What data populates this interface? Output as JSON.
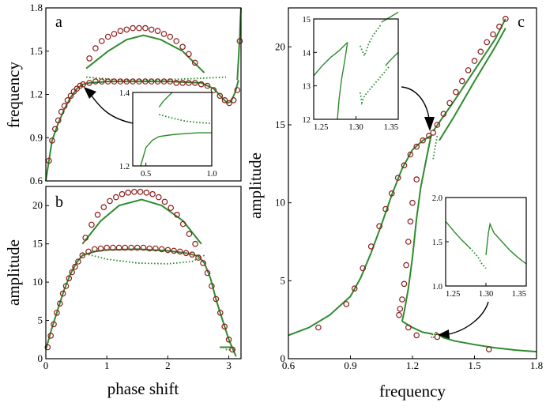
{
  "colors": {
    "curve": "#2e8b2e",
    "marker": "#8b1a1a",
    "axis": "#000000"
  },
  "chart_data": [
    {
      "panel": "a",
      "type": "line",
      "xlabel": "",
      "ylabel": "frequency",
      "xlim": [
        0,
        3.14
      ],
      "ylim": [
        0.6,
        1.8
      ],
      "yticks": [
        "0.6",
        "0.9",
        "1.2",
        "1.5",
        "1.8"
      ],
      "grid": false,
      "series": [
        {
          "style": "solid",
          "x": [
            0,
            0.05,
            0.1,
            0.2,
            0.3,
            0.4,
            0.5,
            0.6,
            0.7,
            1.0,
            1.5,
            2.0,
            2.5,
            2.7,
            2.85,
            2.92,
            2.98,
            3.05,
            3.1
          ],
          "y": [
            0.6,
            0.74,
            0.88,
            1.0,
            1.1,
            1.18,
            1.24,
            1.27,
            1.28,
            1.29,
            1.29,
            1.29,
            1.28,
            1.24,
            1.17,
            1.14,
            1.15,
            1.22,
            1.3
          ]
        },
        {
          "style": "solid",
          "x": [
            0.65,
            1.0,
            1.3,
            1.57,
            1.85,
            2.2,
            2.55
          ],
          "y": [
            1.38,
            1.5,
            1.58,
            1.61,
            1.58,
            1.5,
            1.35
          ]
        },
        {
          "style": "dotted",
          "x": [
            0.65,
            1.2,
            1.8,
            2.4,
            2.9
          ],
          "y": [
            1.32,
            1.3,
            1.3,
            1.31,
            1.32
          ]
        },
        {
          "style": "solid",
          "x": [
            3.08,
            3.1,
            3.12,
            3.13,
            3.14
          ],
          "y": [
            1.3,
            1.45,
            1.6,
            1.72,
            1.8
          ]
        }
      ],
      "markers": {
        "x": [
          0.05,
          0.1,
          0.15,
          0.2,
          0.25,
          0.3,
          0.35,
          0.4,
          0.45,
          0.5,
          0.55,
          0.6,
          0.7,
          0.8,
          0.9,
          1.0,
          1.1,
          1.2,
          1.3,
          1.4,
          1.5,
          1.6,
          1.7,
          1.8,
          1.9,
          2.0,
          2.1,
          2.2,
          2.3,
          2.4,
          2.5,
          2.6,
          2.7,
          2.8,
          2.88,
          2.95,
          3.02,
          3.08,
          0.7,
          0.8,
          0.9,
          1.0,
          1.1,
          1.2,
          1.3,
          1.4,
          1.5,
          1.6,
          1.7,
          1.8,
          1.9,
          2.0,
          2.1,
          2.2,
          2.3,
          2.4,
          3.12
        ],
        "y": [
          0.74,
          0.88,
          0.96,
          1.02,
          1.08,
          1.12,
          1.16,
          1.19,
          1.22,
          1.24,
          1.26,
          1.27,
          1.28,
          1.29,
          1.29,
          1.29,
          1.29,
          1.29,
          1.29,
          1.29,
          1.29,
          1.29,
          1.29,
          1.29,
          1.29,
          1.29,
          1.28,
          1.28,
          1.28,
          1.28,
          1.27,
          1.26,
          1.23,
          1.19,
          1.16,
          1.14,
          1.16,
          1.23,
          1.45,
          1.52,
          1.57,
          1.6,
          1.62,
          1.64,
          1.65,
          1.66,
          1.66,
          1.66,
          1.65,
          1.64,
          1.62,
          1.6,
          1.57,
          1.53,
          1.48,
          1.42,
          1.57
        ]
      },
      "inset": {
        "xlim": [
          0.4,
          1.0
        ],
        "ylim": [
          1.2,
          1.4
        ],
        "xticks": [
          "0.5",
          "1.0"
        ],
        "yticks": [
          "1.2",
          "1.4"
        ],
        "series": [
          {
            "style": "solid",
            "x": [
              0.46,
              0.5,
              0.55,
              0.6,
              0.7,
              0.8,
              0.9,
              1.0
            ],
            "y": [
              1.2,
              1.25,
              1.27,
              1.28,
              1.285,
              1.288,
              1.29,
              1.29
            ]
          },
          {
            "style": "solid",
            "x": [
              0.6,
              0.63,
              0.67,
              0.7
            ],
            "y": [
              1.36,
              1.375,
              1.39,
              1.4
            ]
          },
          {
            "style": "dotted",
            "x": [
              0.6,
              0.7,
              0.8,
              0.9,
              1.0
            ],
            "y": [
              1.34,
              1.33,
              1.322,
              1.318,
              1.316
            ]
          }
        ]
      }
    },
    {
      "panel": "b",
      "type": "line",
      "xlabel": "phase shift",
      "ylabel": "amplitude",
      "xlim": [
        0,
        3.2
      ],
      "ylim": [
        0,
        22.5
      ],
      "xticks": [
        "0",
        "1",
        "2",
        "3"
      ],
      "yticks": [
        "0",
        "5",
        "10",
        "15",
        "20"
      ],
      "grid": false,
      "series": [
        {
          "style": "solid",
          "x": [
            0,
            0.1,
            0.2,
            0.3,
            0.4,
            0.5,
            0.6,
            0.8,
            1.0,
            1.5,
            2.0,
            2.3,
            2.5,
            2.6,
            2.7,
            2.8,
            2.9,
            3.0,
            3.08,
            3.12
          ],
          "y": [
            1.2,
            4.0,
            6.5,
            9.0,
            11.0,
            12.5,
            13.5,
            14.0,
            14.2,
            14.3,
            14.1,
            13.8,
            13.4,
            12.5,
            10.5,
            7.5,
            5.0,
            2.5,
            1.0,
            0.3
          ]
        },
        {
          "style": "solid",
          "x": [
            0.6,
            0.9,
            1.2,
            1.57,
            1.9,
            2.25,
            2.55
          ],
          "y": [
            15.0,
            18.0,
            20.0,
            20.8,
            20.0,
            18.0,
            15.0
          ]
        },
        {
          "style": "dotted",
          "x": [
            0.6,
            1.0,
            1.5,
            2.0,
            2.4,
            2.6
          ],
          "y": [
            13.8,
            13.0,
            12.5,
            12.4,
            12.7,
            13.5
          ]
        },
        {
          "style": "solid",
          "x": [
            2.85,
            2.95,
            3.05,
            3.1
          ],
          "y": [
            1.5,
            1.5,
            1.5,
            1.0
          ]
        },
        {
          "style": "dotted",
          "x": [
            2.95,
            3.0,
            3.05
          ],
          "y": [
            1.2,
            1.15,
            1.2
          ]
        }
      ],
      "markers": {
        "x": [
          0.03,
          0.08,
          0.13,
          0.18,
          0.23,
          0.28,
          0.33,
          0.38,
          0.43,
          0.48,
          0.53,
          0.6,
          0.7,
          0.8,
          0.9,
          1.0,
          1.1,
          1.2,
          1.3,
          1.4,
          1.5,
          1.6,
          1.7,
          1.8,
          1.9,
          2.0,
          2.1,
          2.2,
          2.3,
          2.4,
          2.5,
          2.58,
          2.65,
          2.72,
          2.79,
          2.86,
          2.93,
          3.0,
          3.06,
          0.65,
          0.75,
          0.85,
          0.95,
          1.05,
          1.15,
          1.25,
          1.35,
          1.45,
          1.55,
          1.65,
          1.75,
          1.85,
          1.95,
          2.05,
          2.15,
          2.25,
          2.35,
          2.45
        ],
        "y": [
          1.5,
          3.0,
          4.5,
          6.0,
          7.2,
          8.5,
          9.5,
          10.5,
          11.3,
          12.0,
          12.7,
          13.5,
          14.0,
          14.3,
          14.4,
          14.5,
          14.5,
          14.5,
          14.5,
          14.5,
          14.5,
          14.5,
          14.4,
          14.4,
          14.3,
          14.2,
          14.1,
          14.0,
          13.8,
          13.6,
          13.2,
          12.5,
          11.2,
          9.5,
          7.8,
          6.0,
          4.2,
          2.5,
          1.2,
          15.8,
          17.5,
          18.8,
          19.8,
          20.6,
          21.1,
          21.5,
          21.7,
          21.8,
          21.8,
          21.7,
          21.5,
          21.1,
          20.5,
          19.7,
          18.8,
          17.6,
          16.3,
          15.0
        ]
      }
    },
    {
      "panel": "c",
      "type": "line",
      "xlabel": "frequency",
      "ylabel": "amplitude",
      "xlim": [
        0.6,
        1.8
      ],
      "ylim": [
        0,
        22.5
      ],
      "xticks": [
        "0.6",
        "0.9",
        "1.2",
        "1.5",
        "1.8"
      ],
      "yticks": [
        "0",
        "5",
        "10",
        "15",
        "20"
      ],
      "grid": false,
      "series": [
        {
          "style": "solid",
          "x": [
            0.6,
            0.7,
            0.8,
            0.9,
            0.95,
            1.0,
            1.05,
            1.1,
            1.15,
            1.2,
            1.25,
            1.29
          ],
          "y": [
            1.5,
            2.0,
            2.8,
            4.0,
            5.2,
            6.8,
            8.6,
            10.5,
            12.2,
            13.4,
            14.0,
            14.3
          ]
        },
        {
          "style": "solid",
          "x": [
            1.29,
            1.27,
            1.24,
            1.22,
            1.2,
            1.18,
            1.16,
            1.15
          ],
          "y": [
            14.3,
            13.0,
            11.0,
            9.0,
            6.5,
            4.5,
            3.0,
            2.4
          ]
        },
        {
          "style": "solid",
          "x": [
            1.15,
            1.2,
            1.25,
            1.29,
            1.3
          ],
          "y": [
            2.4,
            2.0,
            1.7,
            1.6,
            1.55
          ]
        },
        {
          "style": "solid",
          "x": [
            1.31,
            1.35,
            1.4,
            1.5,
            1.6,
            1.7,
            1.8
          ],
          "y": [
            1.7,
            1.35,
            1.15,
            0.9,
            0.7,
            0.55,
            0.45
          ]
        },
        {
          "style": "dotted",
          "x": [
            1.29,
            1.3,
            1.31
          ],
          "y": [
            1.4,
            1.3,
            1.7
          ]
        },
        {
          "style": "solid",
          "x": [
            1.3,
            1.4,
            1.5,
            1.6,
            1.65
          ],
          "y": [
            14.6,
            16.5,
            18.5,
            20.5,
            21.8
          ]
        },
        {
          "style": "solid",
          "x": [
            1.33,
            1.4,
            1.5,
            1.6,
            1.65
          ],
          "y": [
            14.0,
            15.5,
            17.8,
            20.0,
            21.2
          ]
        },
        {
          "style": "dotted",
          "x": [
            1.3,
            1.31,
            1.32
          ],
          "y": [
            12.8,
            13.6,
            14.3
          ]
        }
      ],
      "markers": {
        "x": [
          0.745,
          0.88,
          0.92,
          0.96,
          1.0,
          1.04,
          1.07,
          1.1,
          1.13,
          1.16,
          1.19,
          1.22,
          1.25,
          1.28,
          1.3,
          1.22,
          1.2,
          1.19,
          1.18,
          1.17,
          1.16,
          1.15,
          1.14,
          1.135,
          1.18,
          1.22,
          1.32,
          1.57,
          1.32,
          1.35,
          1.38,
          1.41,
          1.44,
          1.47,
          1.5,
          1.53,
          1.56,
          1.59,
          1.62,
          1.65
        ],
        "y": [
          2.0,
          3.5,
          4.5,
          5.8,
          7.2,
          8.5,
          9.6,
          10.6,
          11.6,
          12.4,
          13.1,
          13.6,
          14.0,
          14.3,
          14.5,
          11.5,
          10.0,
          8.8,
          7.5,
          6.0,
          4.8,
          3.8,
          3.2,
          2.8,
          2.0,
          1.5,
          1.4,
          0.6,
          15.0,
          15.7,
          16.4,
          17.1,
          17.8,
          18.5,
          19.1,
          19.7,
          20.3,
          20.8,
          21.3,
          21.8
        ]
      },
      "insets": [
        {
          "xlim": [
            1.25,
            1.35
          ],
          "ylim": [
            12,
            15
          ],
          "xticks": [
            "1.25",
            "1.30",
            "1.35"
          ],
          "yticks": [
            "12",
            "13",
            "14",
            "15"
          ],
          "series": [
            {
              "style": "solid",
              "x": [
                1.25,
                1.26,
                1.27,
                1.28,
                1.29
              ],
              "y": [
                13.3,
                13.6,
                13.85,
                14.05,
                14.3
              ]
            },
            {
              "style": "solid",
              "x": [
                1.29,
                1.287,
                1.283,
                1.28,
                1.278
              ],
              "y": [
                14.3,
                13.8,
                13.2,
                12.6,
                12.0
              ]
            },
            {
              "style": "dotted",
              "x": [
                1.305,
                1.31,
                1.315,
                1.32,
                1.33
              ],
              "y": [
                14.2,
                13.9,
                14.25,
                14.5,
                14.85
              ]
            },
            {
              "style": "dotted",
              "x": [
                1.305,
                1.307,
                1.31,
                1.32,
                1.33,
                1.34
              ],
              "y": [
                12.8,
                12.5,
                12.7,
                13.0,
                13.3,
                13.6
              ]
            },
            {
              "style": "solid",
              "x": [
                1.33,
                1.34,
                1.35
              ],
              "y": [
                14.9,
                15.05,
                15.2
              ]
            },
            {
              "style": "solid",
              "x": [
                1.335,
                1.34,
                1.35
              ],
              "y": [
                13.6,
                13.75,
                14.0
              ]
            }
          ]
        },
        {
          "xlim": [
            1.25,
            1.35
          ],
          "ylim": [
            1.0,
            2.0
          ],
          "xticks": [
            "1.25",
            "1.30",
            "1.35"
          ],
          "yticks": [
            "1.0",
            "1.5",
            "2.0"
          ],
          "series": [
            {
              "style": "solid",
              "x": [
                1.25,
                1.26,
                1.27,
                1.28
              ],
              "y": [
                1.73,
                1.62,
                1.52,
                1.43
              ]
            },
            {
              "style": "dotted",
              "x": [
                1.28,
                1.29,
                1.295,
                1.3
              ],
              "y": [
                1.43,
                1.33,
                1.25,
                1.2
              ]
            },
            {
              "style": "solid",
              "x": [
                1.3,
                1.303,
                1.305,
                1.31,
                1.32,
                1.33,
                1.34,
                1.35
              ],
              "y": [
                1.35,
                1.6,
                1.7,
                1.6,
                1.5,
                1.4,
                1.32,
                1.25
              ]
            }
          ]
        }
      ]
    }
  ]
}
